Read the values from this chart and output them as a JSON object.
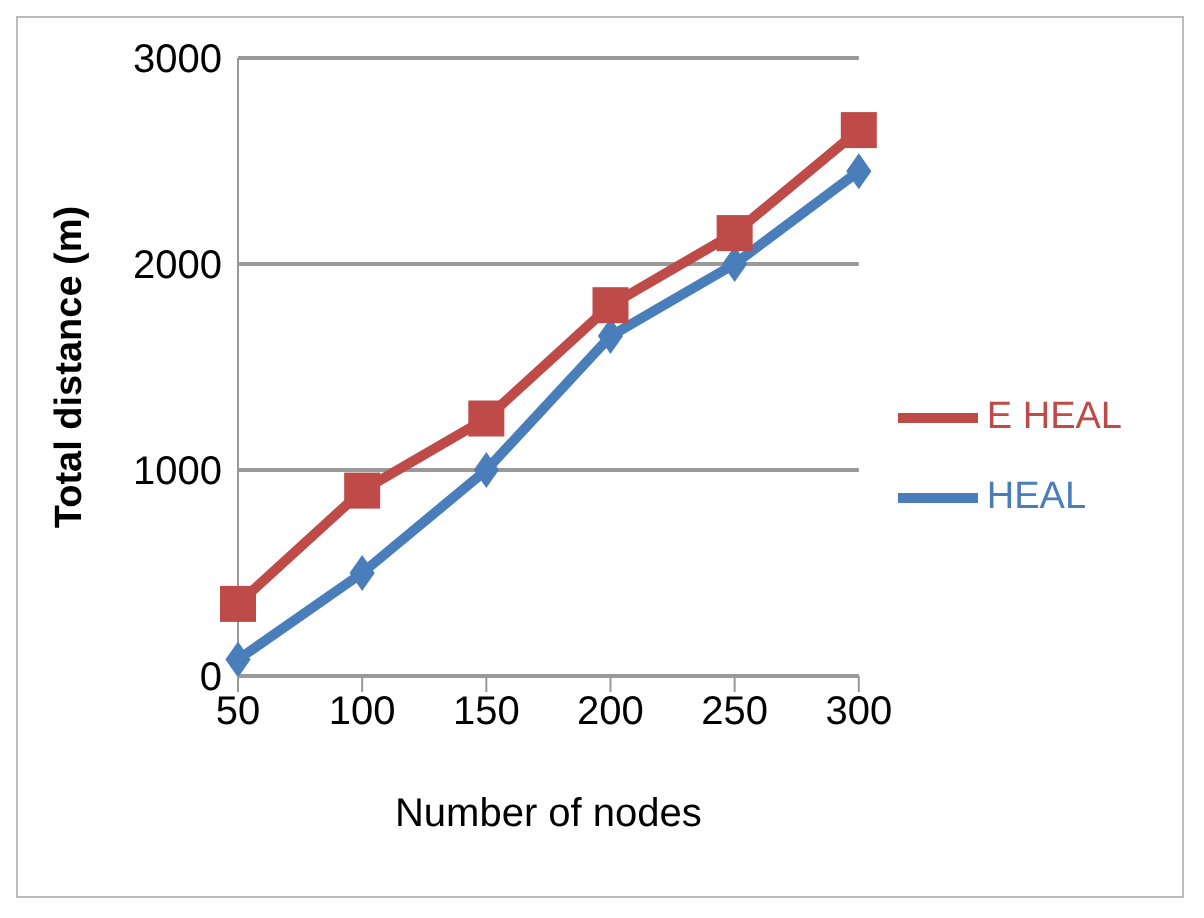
{
  "chart_data": {
    "type": "line",
    "xlabel": "Number of nodes",
    "ylabel": "Total distance  (m)",
    "categories": [
      "50",
      "100",
      "150",
      "200",
      "250",
      "300"
    ],
    "series": [
      {
        "name": "HEAL",
        "color": "#4a7ebb",
        "marker": "diamond",
        "values": [
          80,
          500,
          1000,
          1650,
          2000,
          2450
        ]
      },
      {
        "name": "E HEAL",
        "color": "#be4b48",
        "marker": "square",
        "values": [
          350,
          900,
          1250,
          1800,
          2150,
          2650
        ]
      }
    ],
    "ylim": [
      0,
      3000
    ],
    "yticks": [
      0,
      1000,
      2000,
      3000
    ],
    "grid": "y",
    "legend": "right"
  }
}
